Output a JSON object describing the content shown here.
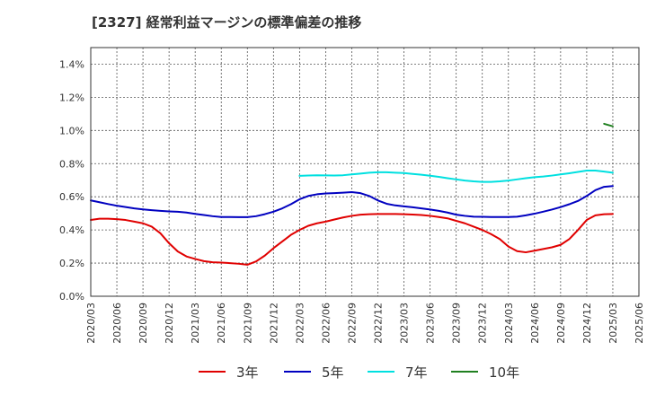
{
  "title": "[2327]  経常利益マージンの標準偏差の推移",
  "chart_data": {
    "type": "line",
    "title": "[2327]  経常利益マージンの標準偏差の推移",
    "xlabel": "",
    "ylabel": "",
    "x_ticks": [
      "2020/03",
      "2020/06",
      "2020/09",
      "2020/12",
      "2021/03",
      "2021/06",
      "2021/09",
      "2021/12",
      "2022/03",
      "2022/06",
      "2022/09",
      "2022/12",
      "2023/03",
      "2023/06",
      "2023/09",
      "2023/12",
      "2024/03",
      "2024/06",
      "2024/09",
      "2024/12",
      "2025/03",
      "2025/06"
    ],
    "y_ticks": [
      "0.0%",
      "0.2%",
      "0.4%",
      "0.6%",
      "0.8%",
      "1.0%",
      "1.2%",
      "1.4%"
    ],
    "ylim": [
      0,
      1.5
    ],
    "grid": true,
    "legend_position": "bottom",
    "x": [
      "2020/03",
      "2020/04",
      "2020/05",
      "2020/06",
      "2020/07",
      "2020/08",
      "2020/09",
      "2020/10",
      "2020/11",
      "2020/12",
      "2021/01",
      "2021/02",
      "2021/03",
      "2021/04",
      "2021/05",
      "2021/06",
      "2021/07",
      "2021/08",
      "2021/09",
      "2021/10",
      "2021/11",
      "2021/12",
      "2022/01",
      "2022/02",
      "2022/03",
      "2022/04",
      "2022/05",
      "2022/06",
      "2022/07",
      "2022/08",
      "2022/09",
      "2022/10",
      "2022/11",
      "2022/12",
      "2023/01",
      "2023/02",
      "2023/03",
      "2023/04",
      "2023/05",
      "2023/06",
      "2023/07",
      "2023/08",
      "2023/09",
      "2023/10",
      "2023/11",
      "2023/12",
      "2024/01",
      "2024/02",
      "2024/03",
      "2024/04",
      "2024/05",
      "2024/06",
      "2024/07",
      "2024/08",
      "2024/09",
      "2024/10",
      "2024/11",
      "2024/12",
      "2025/01",
      "2025/02",
      "2025/03"
    ],
    "series": [
      {
        "name": "3年",
        "color": "#e00000",
        "values": [
          0.46,
          0.468,
          0.468,
          0.465,
          0.46,
          0.45,
          0.44,
          0.42,
          0.38,
          0.32,
          0.27,
          0.24,
          0.225,
          0.212,
          0.205,
          0.203,
          0.2,
          0.196,
          0.19,
          0.21,
          0.245,
          0.29,
          0.33,
          0.37,
          0.4,
          0.425,
          0.44,
          0.45,
          0.463,
          0.475,
          0.485,
          0.492,
          0.495,
          0.496,
          0.496,
          0.496,
          0.495,
          0.493,
          0.49,
          0.485,
          0.478,
          0.47,
          0.455,
          0.44,
          0.42,
          0.4,
          0.375,
          0.345,
          0.3,
          0.272,
          0.265,
          0.275,
          0.285,
          0.295,
          0.31,
          0.345,
          0.4,
          0.46,
          0.488,
          0.495,
          0.496
        ]
      },
      {
        "name": "5年",
        "color": "#0000c0",
        "values": [
          0.578,
          0.567,
          0.556,
          0.546,
          0.538,
          0.53,
          0.524,
          0.519,
          0.515,
          0.512,
          0.51,
          0.505,
          0.497,
          0.49,
          0.483,
          0.478,
          0.478,
          0.477,
          0.477,
          0.483,
          0.495,
          0.51,
          0.53,
          0.555,
          0.585,
          0.605,
          0.615,
          0.62,
          0.622,
          0.625,
          0.628,
          0.622,
          0.605,
          0.578,
          0.558,
          0.548,
          0.542,
          0.537,
          0.53,
          0.523,
          0.515,
          0.505,
          0.492,
          0.485,
          0.48,
          0.479,
          0.478,
          0.478,
          0.478,
          0.48,
          0.488,
          0.498,
          0.51,
          0.523,
          0.538,
          0.555,
          0.575,
          0.605,
          0.64,
          0.66,
          0.665
        ]
      },
      {
        "name": "7年",
        "color": "#00e0e0",
        "values": [
          null,
          null,
          null,
          null,
          null,
          null,
          null,
          null,
          null,
          null,
          null,
          null,
          null,
          null,
          null,
          null,
          null,
          null,
          null,
          null,
          null,
          null,
          null,
          null,
          0.726,
          0.728,
          0.73,
          0.729,
          0.728,
          0.73,
          0.735,
          0.74,
          0.745,
          0.748,
          0.748,
          0.745,
          0.743,
          0.738,
          0.733,
          0.727,
          0.72,
          0.712,
          0.705,
          0.698,
          0.693,
          0.69,
          0.69,
          0.693,
          0.698,
          0.705,
          0.712,
          0.718,
          0.722,
          0.728,
          0.735,
          0.742,
          0.75,
          0.758,
          0.758,
          0.752,
          0.745
        ]
      },
      {
        "name": "10年",
        "color": "#208020",
        "values": [
          null,
          null,
          null,
          null,
          null,
          null,
          null,
          null,
          null,
          null,
          null,
          null,
          null,
          null,
          null,
          null,
          null,
          null,
          null,
          null,
          null,
          null,
          null,
          null,
          null,
          null,
          null,
          null,
          null,
          null,
          null,
          null,
          null,
          null,
          null,
          null,
          null,
          null,
          null,
          null,
          null,
          null,
          null,
          null,
          null,
          null,
          null,
          null,
          null,
          null,
          null,
          null,
          null,
          null,
          null,
          null,
          null,
          null,
          null,
          1.04,
          1.025
        ]
      }
    ]
  }
}
